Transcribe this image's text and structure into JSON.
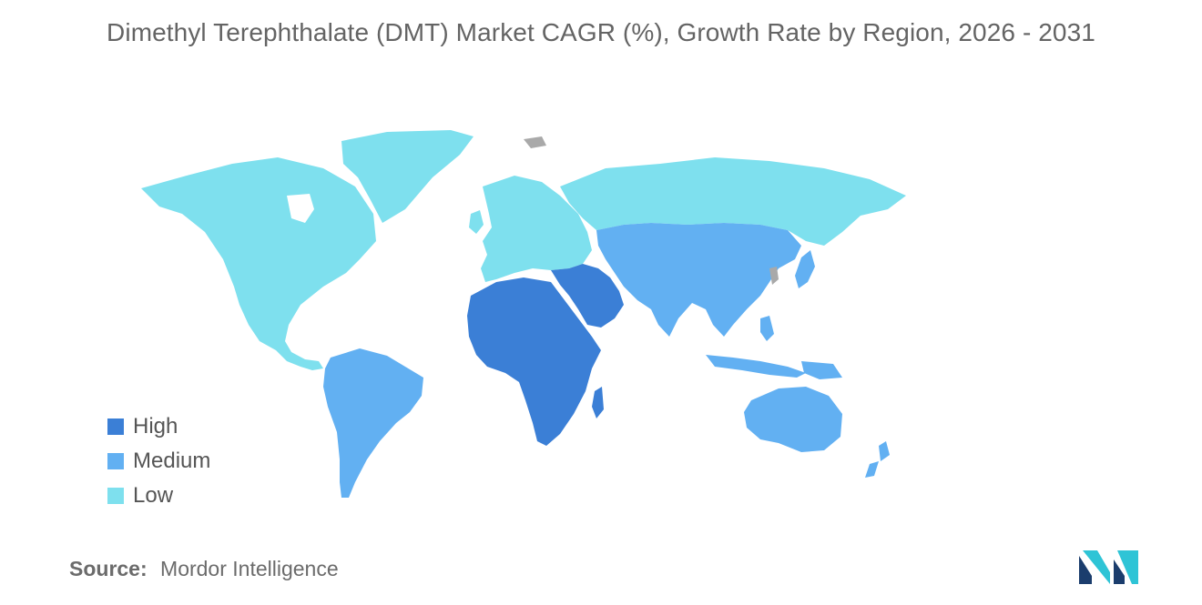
{
  "title": "Dimethyl Terephthalate (DMT) Market CAGR (%), Growth Rate by Region, 2026 - 2031",
  "legend": [
    {
      "label": "High",
      "color": "#3b7fd6"
    },
    {
      "label": "Medium",
      "color": "#62b0f2"
    },
    {
      "label": "Low",
      "color": "#7ee0ee"
    }
  ],
  "regions": [
    {
      "name": "North America",
      "level": "Low"
    },
    {
      "name": "Europe",
      "level": "Low"
    },
    {
      "name": "Russia",
      "level": "Low"
    },
    {
      "name": "Greenland",
      "level": "Low"
    },
    {
      "name": "South America",
      "level": "Medium"
    },
    {
      "name": "Asia",
      "level": "Medium"
    },
    {
      "name": "Australia",
      "level": "Medium"
    },
    {
      "name": "Africa",
      "level": "High"
    },
    {
      "name": "Middle East",
      "level": "High"
    }
  ],
  "no_data_color": "#a9a9a9",
  "source": {
    "label": "Source:",
    "value": "Mordor Intelligence"
  },
  "logo_colors": [
    "#1b3d6d",
    "#2ec4d6"
  ]
}
